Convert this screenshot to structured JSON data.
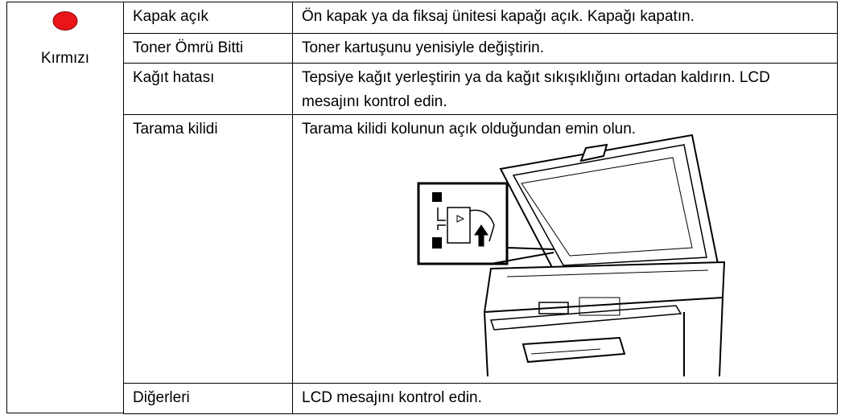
{
  "table": {
    "status": "Kırmızı",
    "rows": [
      [
        "Kapak açık",
        "Ön kapak ya da fiksaj ünitesi kapağı açık. Kapağı kapatın."
      ],
      [
        "Toner Ömrü Bitti",
        "Toner kartuşunu yenisiyle değiştirin."
      ],
      [
        "Kağıt hatası",
        "Tepsiye kağıt yerleştirin ya da kağıt sıkışıklığını ortadan kaldırın. LCD mesajını kontrol edin."
      ],
      [
        "Tarama kilidi",
        "Tarama kilidi kolunun açık olduğundan emin olun."
      ],
      [
        "Diğerleri",
        "LCD mesajını kontrol edin."
      ]
    ]
  }
}
